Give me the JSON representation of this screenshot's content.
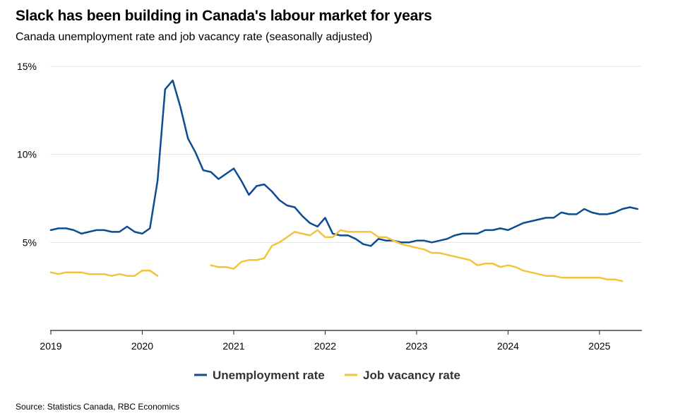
{
  "title": "Slack has been building in Canada's labour market for years",
  "subtitle": "Canada unemployment rate and job vacancy rate (seasonally adjusted)",
  "source": "Source: Statistics Canada, RBC Economics",
  "colors": {
    "unemployment": "#0b4c93",
    "vacancy": "#f5c33b",
    "grid": "#e3e3e3",
    "axis": "#222222"
  },
  "chart_data": {
    "type": "line",
    "x_axis": {
      "start": "2019-01",
      "end": "2025-06",
      "ticks": [
        "2019",
        "2020",
        "2021",
        "2022",
        "2023",
        "2024",
        "2025"
      ]
    },
    "y_axis": {
      "ylim": [
        0,
        15
      ],
      "ticks": [
        {
          "value": 5,
          "label": "5%"
        },
        {
          "value": 10,
          "label": "10%"
        },
        {
          "value": 15,
          "label": "15%"
        }
      ]
    },
    "grid": true,
    "legend": "bottom-center",
    "series": [
      {
        "name": "Unemployment rate",
        "color": "#0b4c93",
        "start": "2019-01",
        "values": [
          5.7,
          5.8,
          5.8,
          5.7,
          5.5,
          5.6,
          5.7,
          5.7,
          5.6,
          5.6,
          5.9,
          5.6,
          5.5,
          5.8,
          8.5,
          13.7,
          14.2,
          12.7,
          10.9,
          10.1,
          9.1,
          9.0,
          8.6,
          8.9,
          9.2,
          8.5,
          7.7,
          8.2,
          8.3,
          7.9,
          7.4,
          7.1,
          7.0,
          6.5,
          6.1,
          5.9,
          6.4,
          5.5,
          5.4,
          5.4,
          5.2,
          4.9,
          4.8,
          5.2,
          5.1,
          5.1,
          5.0,
          5.0,
          5.1,
          5.1,
          5.0,
          5.1,
          5.2,
          5.4,
          5.5,
          5.5,
          5.5,
          5.7,
          5.7,
          5.8,
          5.7,
          5.9,
          6.1,
          6.2,
          6.3,
          6.4,
          6.4,
          6.7,
          6.6,
          6.6,
          6.9,
          6.7,
          6.6,
          6.6,
          6.7,
          6.9,
          7.0,
          6.9
        ]
      },
      {
        "name": "Job vacancy rate",
        "color": "#f5c33b",
        "start": "2019-01",
        "values": [
          3.3,
          3.2,
          3.3,
          3.3,
          3.3,
          3.2,
          3.2,
          3.2,
          3.1,
          3.2,
          3.1,
          3.1,
          3.4,
          3.4,
          3.1,
          null,
          null,
          null,
          null,
          null,
          null,
          3.7,
          3.6,
          3.6,
          3.5,
          3.9,
          4.0,
          4.0,
          4.1,
          4.8,
          5.0,
          5.3,
          5.6,
          5.5,
          5.4,
          5.7,
          5.3,
          5.3,
          5.7,
          5.6,
          5.6,
          5.6,
          5.6,
          5.3,
          5.3,
          5.1,
          4.9,
          4.8,
          4.7,
          4.6,
          4.4,
          4.4,
          4.3,
          4.2,
          4.1,
          4.0,
          3.7,
          3.8,
          3.8,
          3.6,
          3.7,
          3.6,
          3.4,
          3.3,
          3.2,
          3.1,
          3.1,
          3.0,
          3.0,
          3.0,
          3.0,
          3.0,
          3.0,
          2.9,
          2.9,
          2.8
        ]
      }
    ]
  }
}
